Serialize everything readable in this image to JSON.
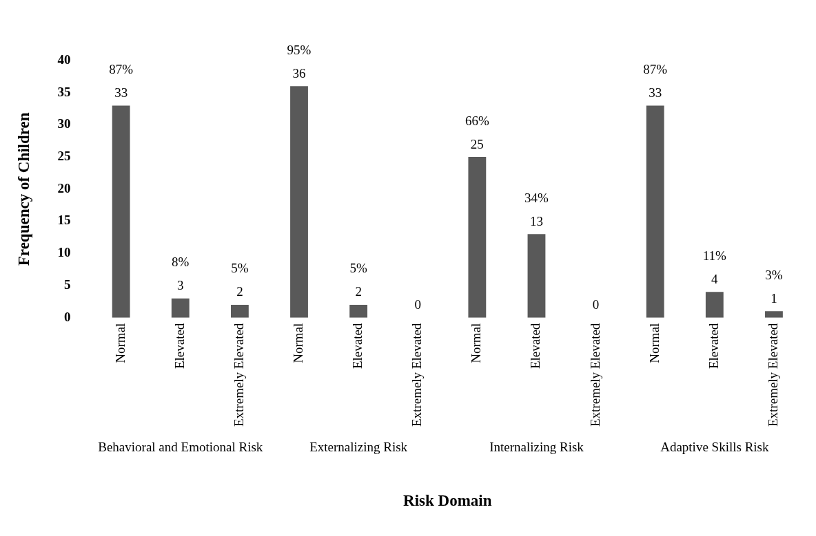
{
  "chart_data": {
    "type": "bar",
    "xlabel": "Risk Domain",
    "ylabel": "Frequency of Children",
    "categories": [
      "Normal",
      "Elevated",
      "Extremely Elevated",
      "Normal",
      "Elevated",
      "Extremely Elevated",
      "Normal",
      "Elevated",
      "Extremely Elevated",
      "Normal",
      "Elevated",
      "Extremely Elevated"
    ],
    "values": [
      33,
      3,
      2,
      36,
      2,
      0,
      25,
      13,
      0,
      33,
      4,
      1
    ],
    "color": "#595959",
    "data_labels": true,
    "annotations": [
      "Behavioral and Emotional Risk",
      "Externalizing Risk",
      "Internalizing Risk",
      "Adaptive Skills Risk",
      "87%",
      "8%",
      "5%",
      "95%",
      "5%",
      "66%",
      "34%",
      "87%",
      "11%",
      "3%"
    ],
    "ylim": [
      0,
      40
    ],
    "yticks": [
      0,
      5,
      10,
      15,
      20,
      25,
      30,
      35,
      40
    ],
    "grid": false,
    "legend": false
  }
}
